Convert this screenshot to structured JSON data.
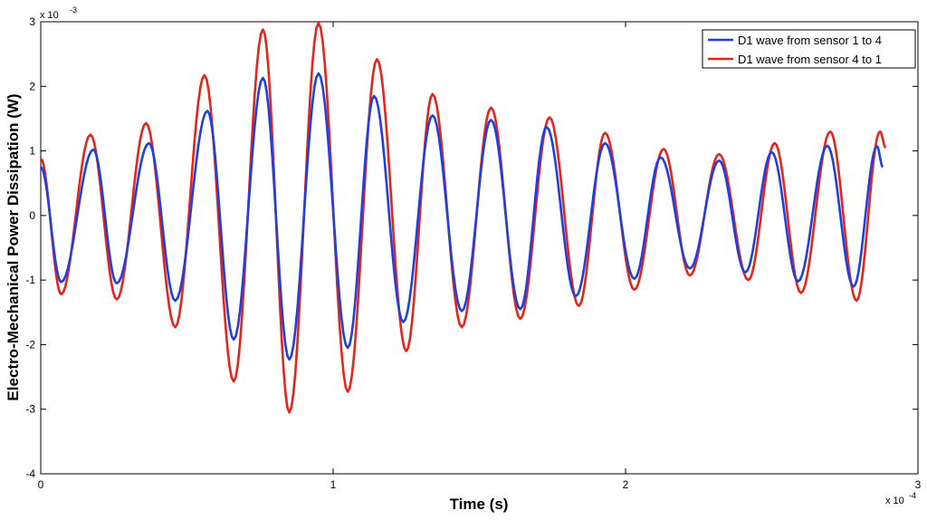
{
  "chart_data": {
    "type": "line",
    "title": "",
    "xlabel": "Time (s)",
    "ylabel": "Electro-Mechanical Power Dissipation (W)",
    "x_multiplier": {
      "base": "x 10",
      "exponent": "-4"
    },
    "y_multiplier": {
      "base": "x 10",
      "exponent": "-3"
    },
    "xlim": [
      0,
      3
    ],
    "ylim": [
      -4,
      3
    ],
    "x_ticks": [
      0,
      1,
      2,
      3
    ],
    "x_tick_labels": [
      "0",
      "1",
      "2",
      "3"
    ],
    "y_ticks": [
      -4,
      -3,
      -2,
      -1,
      0,
      1,
      2,
      3
    ],
    "y_tick_labels": [
      "-4",
      "-3",
      "-2",
      "-1",
      "0",
      "1",
      "2",
      "3"
    ],
    "grid": false,
    "legend_position": "top-right",
    "series": [
      {
        "name": "D1 wave from sensor 1 to 4",
        "color": "#1f3fe0",
        "start": [
          0,
          0.75
        ],
        "extrema": [
          [
            0.07,
            -1.03
          ],
          [
            0.18,
            1.02
          ],
          [
            0.26,
            -1.05
          ],
          [
            0.37,
            1.12
          ],
          [
            0.46,
            -1.32
          ],
          [
            0.57,
            1.62
          ],
          [
            0.66,
            -1.92
          ],
          [
            0.76,
            2.13
          ],
          [
            0.85,
            -2.23
          ],
          [
            0.95,
            2.2
          ],
          [
            1.05,
            -2.05
          ],
          [
            1.14,
            1.85
          ],
          [
            1.24,
            -1.65
          ],
          [
            1.34,
            1.55
          ],
          [
            1.44,
            -1.48
          ],
          [
            1.54,
            1.48
          ],
          [
            1.64,
            -1.45
          ],
          [
            1.73,
            1.37
          ],
          [
            1.83,
            -1.25
          ],
          [
            1.93,
            1.12
          ],
          [
            2.03,
            -0.98
          ],
          [
            2.12,
            0.9
          ],
          [
            2.22,
            -0.82
          ],
          [
            2.32,
            0.85
          ],
          [
            2.41,
            -0.88
          ],
          [
            2.5,
            0.98
          ],
          [
            2.59,
            -1.02
          ],
          [
            2.69,
            1.08
          ],
          [
            2.78,
            -1.1
          ],
          [
            2.86,
            1.07
          ]
        ],
        "end": [
          2.88,
          0.75
        ]
      },
      {
        "name": "D1 wave from sensor 4 to 1",
        "color": "#e8231a",
        "start": [
          0,
          0.88
        ],
        "extrema": [
          [
            0.07,
            -1.22
          ],
          [
            0.17,
            1.25
          ],
          [
            0.26,
            -1.3
          ],
          [
            0.36,
            1.43
          ],
          [
            0.46,
            -1.73
          ],
          [
            0.56,
            2.17
          ],
          [
            0.66,
            -2.57
          ],
          [
            0.76,
            2.88
          ],
          [
            0.85,
            -3.05
          ],
          [
            0.95,
            2.98
          ],
          [
            1.05,
            -2.73
          ],
          [
            1.15,
            2.42
          ],
          [
            1.25,
            -2.1
          ],
          [
            1.34,
            1.88
          ],
          [
            1.44,
            -1.73
          ],
          [
            1.54,
            1.67
          ],
          [
            1.64,
            -1.6
          ],
          [
            1.74,
            1.52
          ],
          [
            1.84,
            -1.4
          ],
          [
            1.93,
            1.28
          ],
          [
            2.03,
            -1.15
          ],
          [
            2.13,
            1.03
          ],
          [
            2.22,
            -0.93
          ],
          [
            2.32,
            0.95
          ],
          [
            2.42,
            -1.0
          ],
          [
            2.51,
            1.12
          ],
          [
            2.6,
            -1.2
          ],
          [
            2.7,
            1.3
          ],
          [
            2.79,
            -1.32
          ],
          [
            2.87,
            1.3
          ]
        ],
        "end": [
          2.89,
          1.05
        ]
      }
    ]
  }
}
